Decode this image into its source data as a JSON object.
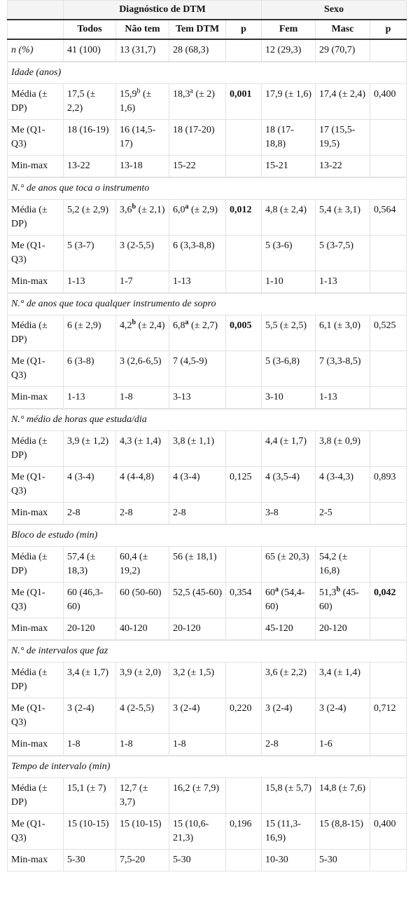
{
  "table": {
    "groups": [
      "Diagnóstico de DTM",
      "Sexo"
    ],
    "columns": [
      "Todos",
      "Não tem",
      "Tem DTM",
      "p",
      "Fem",
      "Masc",
      "p"
    ],
    "rows": [
      {
        "label": "n (%)",
        "cells": [
          "41 (100)",
          "13 (31,7)",
          "28 (68,3)",
          null,
          "12 (29,3)",
          "29 (70,7)",
          null
        ]
      }
    ],
    "sections": [
      {
        "title": "Idade (anos)",
        "rows": [
          {
            "label": "Média (± DP)",
            "cells": [
              "17,5 (± 2,2)",
              {
                "main": "15,9",
                "sup": "b",
                "rest": " (± 1,6)"
              },
              {
                "main": "18,3",
                "sup": "a",
                "rest": " (± 2)"
              },
              {
                "text": "0,001",
                "bold": true
              },
              "17,9 (± 1,6)",
              "17,4 (± 2,4)",
              "0,400"
            ]
          },
          {
            "label": "Me (Q1-Q3)",
            "cells": [
              "18 (16-19)",
              "16 (14,5-17)",
              "18 (17-20)",
              null,
              "18 (17-18,8)",
              "17 (15,5-19,5)",
              null
            ]
          },
          {
            "label": "Min-max",
            "cells": [
              "13-22",
              "13-18",
              "15-22",
              null,
              "15-21",
              "13-22",
              null
            ]
          }
        ]
      },
      {
        "title": "N.° de anos que toca o instrumento",
        "rows": [
          {
            "label": "Média (± DP)",
            "cells": [
              "5,2 (± 2,9)",
              {
                "main": "3,6",
                "sup": "b",
                "rest": " (± 2,1)",
                "sup_bold": true
              },
              {
                "main": "6,0",
                "sup": "a",
                "rest": " (± 2,9)",
                "sup_bold": true
              },
              {
                "text": "0,012",
                "bold": true
              },
              "4,8 (± 2,4)",
              "5,4 (± 3,1)",
              "0,564"
            ]
          },
          {
            "label": "Me (Q1-Q3)",
            "cells": [
              "5 (3-7)",
              "3 (2-5,5)",
              "6 (3,3-8,8)",
              null,
              "5 (3-6)",
              "5 (3-7,5)",
              null
            ]
          },
          {
            "label": "Min-max",
            "cells": [
              "1-13",
              "1-7",
              "1-13",
              null,
              "1-10",
              "1-13",
              null
            ]
          }
        ]
      },
      {
        "title": "N.° de anos que toca qualquer instrumento de sopro",
        "rows": [
          {
            "label": "Média (± DP)",
            "cells": [
              "6 (± 2,9)",
              {
                "main": "4,2",
                "sup": "b",
                "rest": " (± 2,4)",
                "sup_bold": true
              },
              {
                "main": "6,8",
                "sup": "a",
                "rest": " (± 2,7)",
                "sup_bold": true
              },
              {
                "text": "0,005",
                "bold": true
              },
              "5,5 (± 2,5)",
              "6,1 (± 3,0)",
              "0,525"
            ]
          },
          {
            "label": "Me (Q1-Q3)",
            "cells": [
              "6 (3-8)",
              "3 (2,6-6,5)",
              "7 (4,5-9)",
              null,
              "5 (3-6,8)",
              "7 (3,3-8,5)",
              null
            ]
          },
          {
            "label": "Min-max",
            "cells": [
              "1-13",
              "1-8",
              "3-13",
              null,
              "3-10",
              "1-13",
              null
            ]
          }
        ]
      },
      {
        "title": "N.° médio de horas que estuda/dia",
        "rows": [
          {
            "label": "Média (± DP)",
            "cells": [
              "3,9 (± 1,2)",
              "4,3 (± 1,4)",
              "3,8 (± 1,1)",
              null,
              "4,4 (± 1,7)",
              "3,8 (± 0,9)",
              null
            ]
          },
          {
            "label": "Me (Q1-Q3)",
            "cells": [
              "4 (3-4)",
              "4 (4-4,8)",
              "4 (3-4)",
              "0,125",
              "4 (3,5-4)",
              "4 (3-4,3)",
              "0,893"
            ]
          },
          {
            "label": "Min-max",
            "cells": [
              "2-8",
              "2-8",
              "2-8",
              null,
              "3-8",
              "2-5",
              null
            ]
          }
        ]
      },
      {
        "title": "Bloco de estudo (min)",
        "rows": [
          {
            "label": "Média (± DP)",
            "cells": [
              "57,4 (± 18,3)",
              "60,4 (± 19,2)",
              "56 (± 18,1)",
              null,
              "65 (± 20,3)",
              "54,2 (± 16,8)",
              null
            ]
          },
          {
            "label": "Me (Q1-Q3)",
            "cells": [
              "60 (46,3-60)",
              "60 (50-60)",
              "52,5 (45-60)",
              "0,354",
              {
                "main": "60",
                "sup": "a",
                "rest": " (54,4-60)",
                "sup_bold": true
              },
              {
                "main": "51,3",
                "sup": "b",
                "rest": " (45-60)",
                "sup_bold": true
              },
              {
                "text": "0,042",
                "bold": true
              }
            ]
          },
          {
            "label": "Min-max",
            "cells": [
              "20-120",
              "40-120",
              "20-120",
              null,
              "45-120",
              "20-120",
              null
            ]
          }
        ]
      },
      {
        "title": "N.° de intervalos que faz",
        "rows": [
          {
            "label": "Média (± DP)",
            "cells": [
              "3,4 (± 1,7)",
              "3,9 (± 2,0)",
              "3,2 (± 1,5)",
              null,
              "3,6 (± 2,2)",
              "3,4 (± 1,4)",
              null
            ]
          },
          {
            "label": "Me (Q1-Q3)",
            "cells": [
              "3 (2-4)",
              "4 (2-5,5)",
              "3 (2-4)",
              "0,220",
              "3 (2-4)",
              "3 (2-4)",
              "0,712"
            ]
          },
          {
            "label": "Min-max",
            "cells": [
              "1-8",
              "1-8",
              "1-8",
              null,
              "2-8",
              "1-6",
              null
            ]
          }
        ]
      },
      {
        "title": "Tempo de intervalo (min)",
        "rows": [
          {
            "label": "Média (± DP)",
            "cells": [
              "15,1 (± 7)",
              "12,7 (± 3,7)",
              "16,2 (± 7,9)",
              null,
              "15,8 (± 5,7)",
              "14,8 (± 7,6)",
              null
            ]
          },
          {
            "label": "Me (Q1-Q3)",
            "cells": [
              "15 (10-15)",
              "15 (10-15)",
              "15 (10,6-21,3)",
              "0,196",
              "15 (11,3-16,9)",
              "15 (8,8-15)",
              "0,400"
            ]
          },
          {
            "label": "Min-max",
            "cells": [
              "5-30",
              "7,5-20",
              "5-30",
              null,
              "10-30",
              "5-30",
              null
            ]
          }
        ]
      }
    ]
  }
}
